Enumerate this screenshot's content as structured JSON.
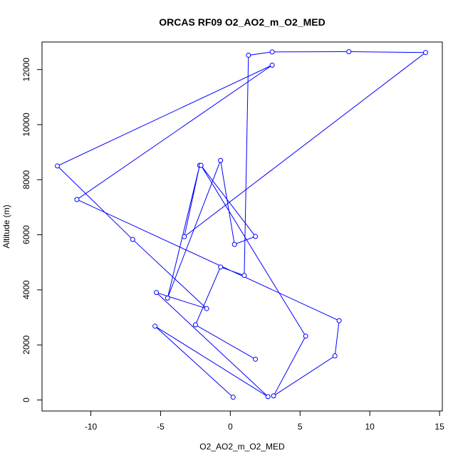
{
  "chart_data": {
    "type": "line",
    "title": "ORCAS RF09 O2_AO2_m_O2_MED",
    "xlabel": "O2_AO2_m_O2_MED",
    "ylabel": "Altitude (m)",
    "xlim": [
      -13.5,
      15.2
    ],
    "ylim": [
      -400,
      13000
    ],
    "xticks": [
      -10,
      -5,
      0,
      5,
      10,
      15
    ],
    "yticks": [
      0,
      2000,
      4000,
      6000,
      8000,
      10000,
      12000
    ],
    "grid": false,
    "line_color": "#0000ff",
    "marker": "open-circle",
    "series": [
      {
        "x": [
          1.8,
          -2.5,
          -0.7,
          1.0,
          1.3,
          3.0,
          8.5,
          14.0,
          -3.3,
          -2.2,
          -4.5,
          -0.7,
          0.3,
          1.8,
          -2.1,
          5.4,
          3.1,
          7.5,
          7.8,
          -11.0,
          3.0,
          -12.4,
          -7.0,
          -1.7,
          -5.3,
          2.7,
          -5.4,
          0.2
        ],
        "y": [
          1480,
          2730,
          4830,
          4520,
          12520,
          12640,
          12650,
          12620,
          5930,
          8520,
          3700,
          8700,
          5650,
          5940,
          8520,
          2320,
          150,
          1600,
          2880,
          7280,
          12160,
          8500,
          5830,
          3320,
          3900,
          120,
          2680,
          100
        ]
      }
    ]
  }
}
